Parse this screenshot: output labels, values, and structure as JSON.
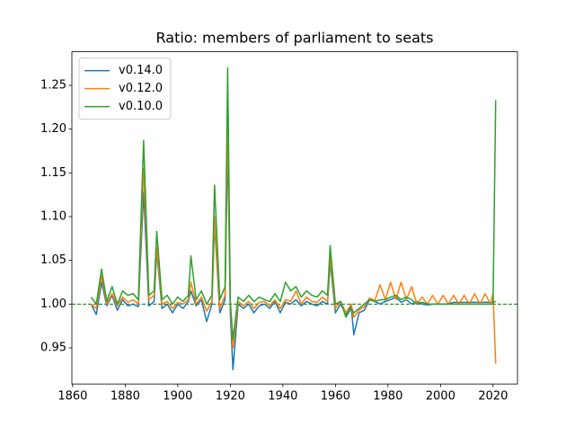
{
  "chart_data": {
    "type": "line",
    "title": "Ratio: members of parliament to seats",
    "x": [
      1867,
      1869,
      1871,
      1873,
      1875,
      1877,
      1879,
      1881,
      1883,
      1885,
      1887,
      1889,
      1891,
      1892,
      1894,
      1896,
      1898,
      1900,
      1902,
      1904,
      1905,
      1907,
      1909,
      1911,
      1913,
      1914,
      1916,
      1918,
      1919,
      1920,
      1921,
      1923,
      1925,
      1927,
      1929,
      1931,
      1933,
      1935,
      1937,
      1939,
      1941,
      1943,
      1945,
      1947,
      1949,
      1951,
      1953,
      1955,
      1957,
      1958,
      1960,
      1962,
      1964,
      1966,
      1967,
      1969,
      1971,
      1973,
      1975,
      1977,
      1979,
      1981,
      1983,
      1985,
      1987,
      1989,
      1991,
      1993,
      1995,
      1997,
      1999,
      2001,
      2003,
      2005,
      2007,
      2009,
      2011,
      2013,
      2015,
      2017,
      2019,
      2020,
      2021
    ],
    "series": [
      {
        "name": "v0.14.0",
        "color": "#1f77b4",
        "values": [
          1.0,
          0.988,
          1.025,
          0.998,
          1.01,
          0.993,
          1.005,
          0.998,
          1.0,
          0.997,
          1.128,
          0.998,
          1.003,
          1.06,
          0.995,
          1.0,
          0.99,
          1.0,
          0.995,
          1.003,
          1.015,
          0.998,
          1.005,
          0.98,
          1.0,
          1.092,
          0.99,
          1.005,
          1.185,
          0.99,
          0.925,
          1.0,
          0.995,
          1.0,
          0.99,
          0.998,
          1.0,
          0.995,
          1.003,
          0.99,
          1.002,
          1.0,
          1.005,
          0.998,
          1.003,
          1.0,
          0.998,
          1.003,
          1.0,
          1.048,
          0.99,
          1.0,
          0.988,
          0.998,
          0.965,
          0.99,
          0.993,
          1.005,
          1.003,
          1.0,
          1.003,
          1.005,
          1.008,
          1.002,
          1.005,
          1.0,
          1.003,
          1.0,
          0.999,
          1.0,
          1.0,
          1.0,
          1.0,
          1.002,
          1.002,
          1.002,
          1.002,
          1.002,
          1.002,
          1.002,
          1.002,
          1.002,
          1.003
        ]
      },
      {
        "name": "v0.12.0",
        "color": "#ff7f0e",
        "values": [
          1.0,
          0.995,
          1.032,
          1.0,
          1.012,
          0.998,
          1.008,
          1.002,
          1.005,
          1.0,
          1.155,
          1.005,
          1.01,
          1.065,
          1.0,
          1.003,
          0.995,
          1.002,
          1.0,
          1.005,
          1.025,
          1.0,
          1.008,
          0.992,
          1.003,
          1.1,
          0.995,
          1.01,
          1.212,
          0.998,
          0.95,
          1.003,
          0.998,
          1.003,
          0.995,
          1.002,
          1.003,
          0.998,
          1.005,
          0.995,
          1.005,
          1.003,
          1.015,
          1.0,
          1.008,
          1.003,
          1.002,
          1.008,
          1.003,
          1.055,
          0.995,
          1.003,
          0.99,
          1.0,
          0.985,
          0.993,
          0.997,
          1.007,
          1.004,
          1.022,
          1.005,
          1.025,
          1.005,
          1.025,
          1.005,
          1.02,
          1.0,
          1.008,
          1.0,
          1.01,
          1.0,
          1.01,
          1.0,
          1.01,
          1.0,
          1.01,
          1.0,
          1.012,
          1.0,
          1.012,
          1.0,
          1.012,
          0.932
        ]
      },
      {
        "name": "v0.10.0",
        "color": "#2ca02c",
        "values": [
          1.008,
          1.0,
          1.04,
          1.003,
          1.02,
          1.0,
          1.015,
          1.01,
          1.012,
          1.005,
          1.187,
          1.01,
          1.015,
          1.083,
          1.005,
          1.01,
          1.0,
          1.008,
          1.003,
          1.01,
          1.055,
          1.005,
          1.015,
          1.0,
          1.01,
          1.136,
          1.005,
          1.02,
          1.27,
          1.003,
          0.96,
          1.008,
          1.003,
          1.01,
          1.003,
          1.008,
          1.005,
          1.003,
          1.012,
          1.003,
          1.025,
          1.015,
          1.02,
          1.008,
          1.015,
          1.01,
          1.008,
          1.015,
          1.01,
          1.067,
          1.0,
          1.003,
          0.985,
          0.995,
          0.99,
          0.995,
          1.0,
          1.005,
          1.003,
          1.005,
          1.005,
          1.008,
          1.01,
          1.005,
          1.008,
          1.005,
          1.0,
          1.002,
          1.0,
          1.0,
          1.0,
          1.0,
          1.0,
          1.0,
          1.0,
          1.0,
          1.0,
          1.0,
          1.0,
          1.0,
          1.0,
          1.0,
          1.233
        ]
      }
    ],
    "xlim": [
      1859.7,
      2029.3
    ],
    "xticks": [
      1860,
      1880,
      1900,
      1920,
      1940,
      1960,
      1980,
      2000,
      2020
    ],
    "ylim": [
      0.9087,
      1.2884
    ],
    "yticks": [
      0.95,
      {
        "value": 1.0,
        "label": "1.00"
      },
      1.05,
      {
        "value": 1.1,
        "label": "1.10"
      },
      1.15,
      {
        "value": 1.2,
        "label": "1.20"
      },
      1.25
    ],
    "hline": {
      "value": 1.0,
      "color": "green"
    },
    "legend": "upper left"
  }
}
